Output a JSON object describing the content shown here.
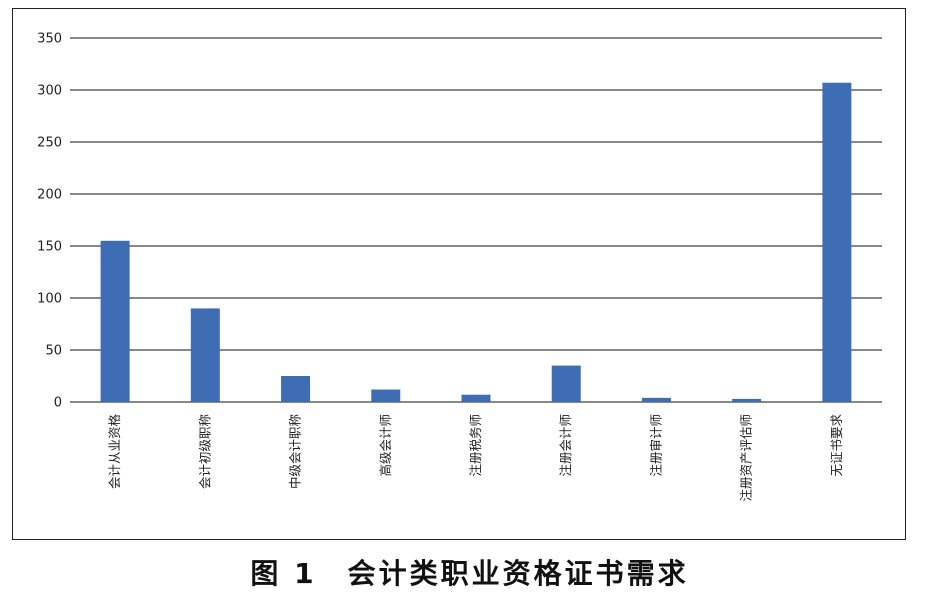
{
  "caption": "图 1　会计类职业资格证书需求",
  "chart_data": {
    "type": "bar",
    "title": "",
    "xlabel": "",
    "ylabel": "",
    "categories": [
      "会计从业资格",
      "会计初级职称",
      "中级会计职称",
      "高级会计师",
      "注册税务师",
      "注册会计师",
      "注册审计师",
      "注册资产评估师",
      "无证书要求"
    ],
    "values": [
      155,
      90,
      25,
      12,
      7,
      35,
      4,
      3,
      307
    ],
    "ylim": [
      0,
      350
    ],
    "yticks": [
      0,
      50,
      100,
      150,
      200,
      250,
      300,
      350
    ],
    "grid": true,
    "bar_color": "#3f6db4"
  }
}
